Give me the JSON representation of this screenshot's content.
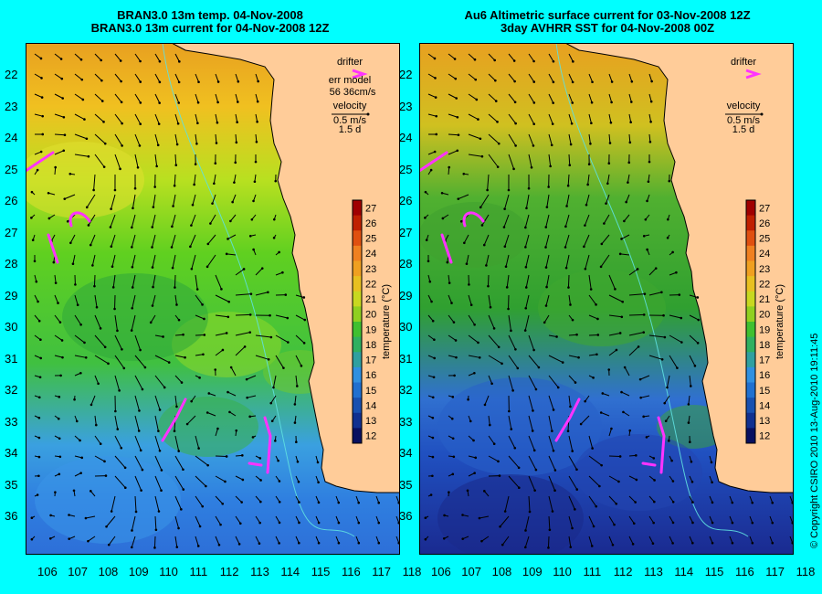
{
  "left_panel": {
    "title_line1": "BRAN3.0 13m temp. 04-Nov-2008",
    "title_line2": "BRAN3.0 13m current for 04-Nov-2008 12Z",
    "legend": {
      "drifter_label": "drifter",
      "err_label": "err model",
      "err_value": "56 36cm/s",
      "velocity_label": "velocity",
      "velocity_scale": "0.5 m/s",
      "velocity_time": "1.5 d"
    },
    "field_style": "model"
  },
  "right_panel": {
    "title_line1": "Au6 Altimetric surface current for 03-Nov-2008 12Z",
    "title_line2": "3day AVHRR SST for 04-Nov-2008 00Z",
    "legend": {
      "drifter_label": "drifter",
      "velocity_label": "velocity",
      "velocity_scale": "0.5 m/s",
      "velocity_time": "1.5 d"
    },
    "field_style": "satellite"
  },
  "axes": {
    "lat_labels": [
      "22",
      "23",
      "24",
      "25",
      "26",
      "27",
      "28",
      "29",
      "30",
      "31",
      "32",
      "33",
      "34",
      "35",
      "36"
    ],
    "lon_labels": [
      "106",
      "107",
      "108",
      "109",
      "110",
      "111",
      "112",
      "113",
      "114",
      "115",
      "116",
      "117",
      "118"
    ]
  },
  "colorbar": {
    "label": "temperature (°C)",
    "ticks": [
      "27",
      "26",
      "25",
      "24",
      "23",
      "22",
      "21",
      "20",
      "19",
      "18",
      "17",
      "16",
      "15",
      "14",
      "13",
      "12"
    ]
  },
  "copyright": "© Copyright CSIRO 2010   13-Aug-2010 19:11:45",
  "colors": {
    "background": "#00ffff",
    "land": "#ffcc99",
    "drifter": "#ff33ff",
    "arrows": "#000000"
  }
}
